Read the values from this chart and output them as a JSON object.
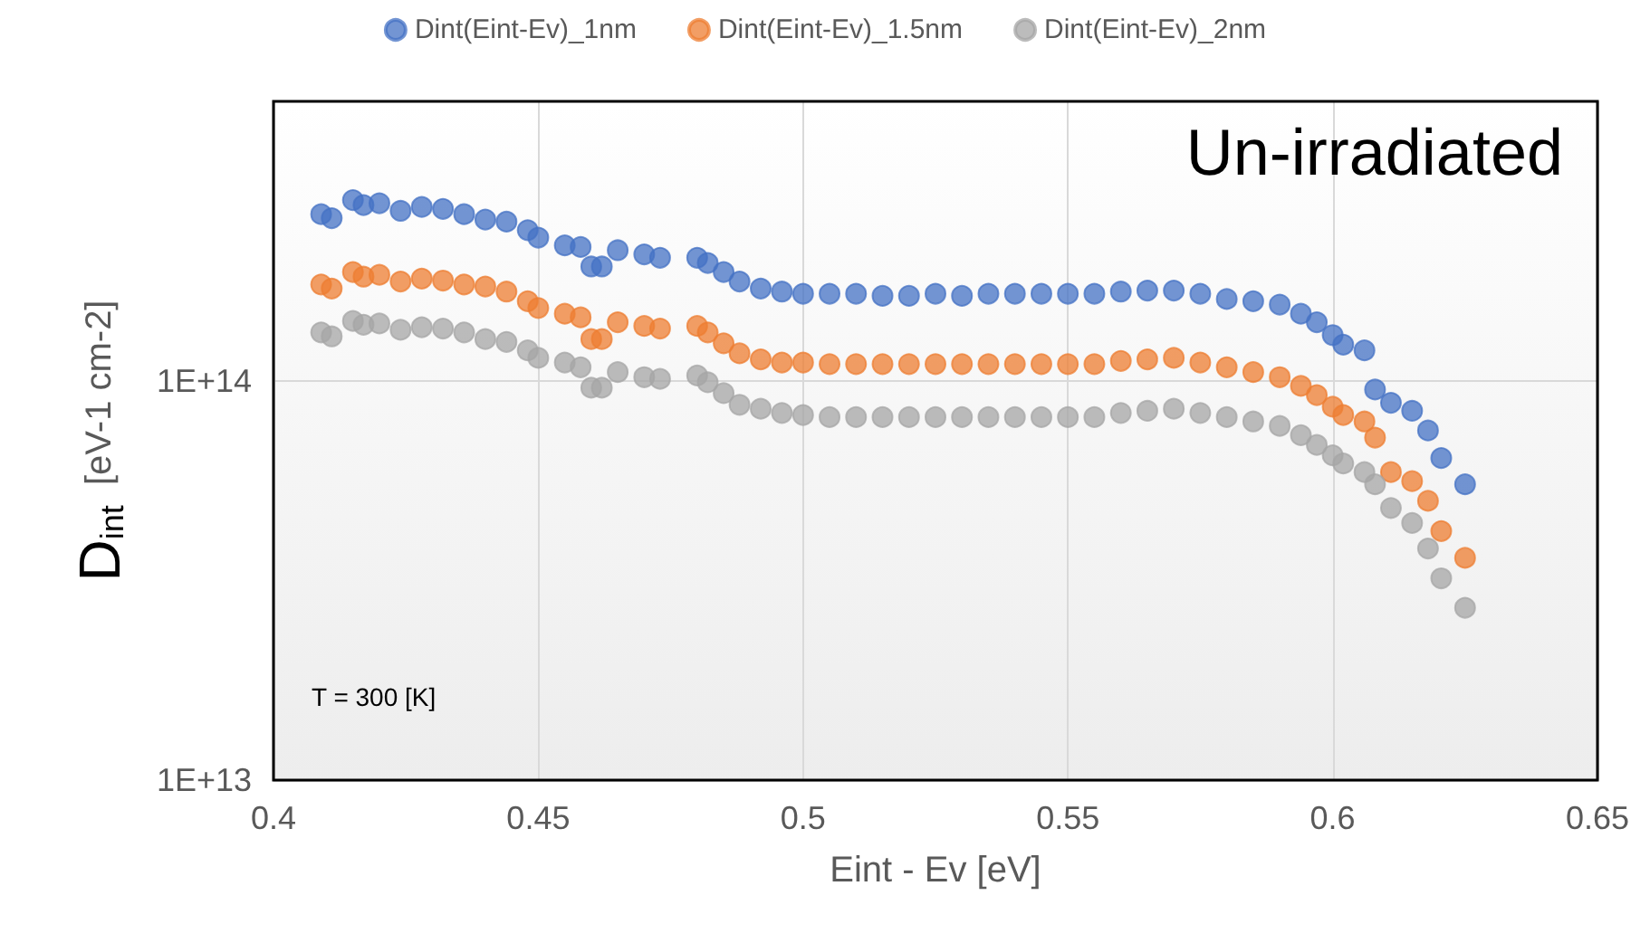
{
  "chart_data": {
    "type": "scatter",
    "xlabel": "Eint - Ev [eV]",
    "ylabel": "D$_{int}$  [eV-1 cm-2]",
    "annotations": [
      "Un-irradiated",
      "T = 300 [K]"
    ],
    "xlim": [
      0.4,
      0.65
    ],
    "xticks": [
      0.4,
      0.45,
      0.5,
      0.55,
      0.6,
      0.65
    ],
    "ylim": [
      10000000000000.0,
      500000000000000.0
    ],
    "yticks": [
      {
        "value": 10000000000000.0,
        "label": "1E+13"
      },
      {
        "value": 100000000000000.0,
        "label": "1E+14"
      }
    ],
    "log": "y",
    "grid": true,
    "legend": "top",
    "marker": "circle",
    "x": [
      0.409,
      0.411,
      0.415,
      0.417,
      0.42,
      0.424,
      0.428,
      0.432,
      0.436,
      0.44,
      0.444,
      0.448,
      0.45,
      0.455,
      0.458,
      0.46,
      0.462,
      0.465,
      0.47,
      0.473,
      0.48,
      0.482,
      0.485,
      0.488,
      0.492,
      0.496,
      0.5,
      0.505,
      0.51,
      0.515,
      0.52,
      0.525,
      0.53,
      0.535,
      0.54,
      0.545,
      0.55,
      0.555,
      0.56,
      0.565,
      0.57,
      0.575,
      0.58,
      0.585,
      0.59,
      0.594,
      0.597,
      0.6,
      0.602,
      0.606,
      0.608,
      0.611,
      0.615,
      0.618,
      0.6205,
      0.625
    ],
    "series": [
      {
        "name": "Dint(Eint-Ev)_1nm",
        "color": "#4472c4",
        "values": [
          261000000000000.0,
          255000000000000.0,
          283000000000000.0,
          275000000000000.0,
          278000000000000.0,
          266000000000000.0,
          272000000000000.0,
          269000000000000.0,
          261000000000000.0,
          253000000000000.0,
          250000000000000.0,
          238000000000000.0,
          228000000000000.0,
          218000000000000.0,
          216000000000000.0,
          193000000000000.0,
          193000000000000.0,
          212000000000000.0,
          207000000000000.0,
          203000000000000.0,
          203000000000000.0,
          197000000000000.0,
          187000000000000.0,
          177000000000000.0,
          170000000000000.0,
          167000000000000.0,
          165000000000000.0,
          165000000000000.0,
          165000000000000.0,
          163000000000000.0,
          163000000000000.0,
          165000000000000.0,
          163000000000000.0,
          165000000000000.0,
          165000000000000.0,
          165000000000000.0,
          165000000000000.0,
          165000000000000.0,
          167000000000000.0,
          168000000000000.0,
          168000000000000.0,
          165000000000000.0,
          160000000000000.0,
          158000000000000.0,
          155000000000000.0,
          147000000000000.0,
          140000000000000.0,
          130000000000000.0,
          123000000000000.0,
          119000000000000.0,
          95000000000000.0,
          88000000000000.0,
          84000000000000.0,
          75000000000000.0,
          64000000000000.0,
          55000000000000.0
        ]
      },
      {
        "name": "Dint(Eint-Ev)_1.5nm",
        "color": "#ed7d31",
        "values": [
          174000000000000.0,
          170000000000000.0,
          187000000000000.0,
          182000000000000.0,
          184000000000000.0,
          177000000000000.0,
          180000000000000.0,
          178000000000000.0,
          174000000000000.0,
          172000000000000.0,
          167000000000000.0,
          158000000000000.0,
          152000000000000.0,
          147000000000000.0,
          144000000000000.0,
          127000000000000.0,
          127000000000000.0,
          140000000000000.0,
          137000000000000.0,
          135000000000000.0,
          137000000000000.0,
          132000000000000.0,
          124000000000000.0,
          117000000000000.0,
          113000000000000.0,
          111000000000000.0,
          111000000000000.0,
          110000000000000.0,
          110000000000000.0,
          110000000000000.0,
          110000000000000.0,
          110000000000000.0,
          110000000000000.0,
          110000000000000.0,
          110000000000000.0,
          110000000000000.0,
          110000000000000.0,
          110000000000000.0,
          112000000000000.0,
          113000000000000.0,
          114000000000000.0,
          111000000000000.0,
          108000000000000.0,
          105000000000000.0,
          102000000000000.0,
          97000000000000.0,
          92000000000000.0,
          86000000000000.0,
          82000000000000.0,
          79000000000000.0,
          72000000000000.0,
          59000000000000.0,
          56000000000000.0,
          50000000000000.0,
          42000000000000.0,
          36000000000000.0
        ]
      },
      {
        "name": "Dint(Eint-Ev)_2nm",
        "color": "#a5a5a5",
        "values": [
          132000000000000.0,
          129000000000000.0,
          141000000000000.0,
          138000000000000.0,
          139000000000000.0,
          134000000000000.0,
          136000000000000.0,
          135000000000000.0,
          132000000000000.0,
          127000000000000.0,
          125000000000000.0,
          119000000000000.0,
          114000000000000.0,
          111000000000000.0,
          108000000000000.0,
          96000000000000.0,
          96000000000000.0,
          105000000000000.0,
          102000000000000.0,
          101000000000000.0,
          103000000000000.0,
          99000000000000.0,
          93000000000000.0,
          87000000000000.0,
          85000000000000.0,
          83000000000000.0,
          82000000000000.0,
          81000000000000.0,
          81000000000000.0,
          81000000000000.0,
          81000000000000.0,
          81000000000000.0,
          81000000000000.0,
          81000000000000.0,
          81000000000000.0,
          81000000000000.0,
          81000000000000.0,
          81000000000000.0,
          83000000000000.0,
          84000000000000.0,
          85000000000000.0,
          83000000000000.0,
          81000000000000.0,
          79000000000000.0,
          77000000000000.0,
          73000000000000.0,
          69000000000000.0,
          65000000000000.0,
          62000000000000.0,
          59000000000000.0,
          55000000000000.0,
          48000000000000.0,
          44000000000000.0,
          38000000000000.0,
          32000000000000.0,
          27000000000000.0
        ]
      }
    ]
  }
}
